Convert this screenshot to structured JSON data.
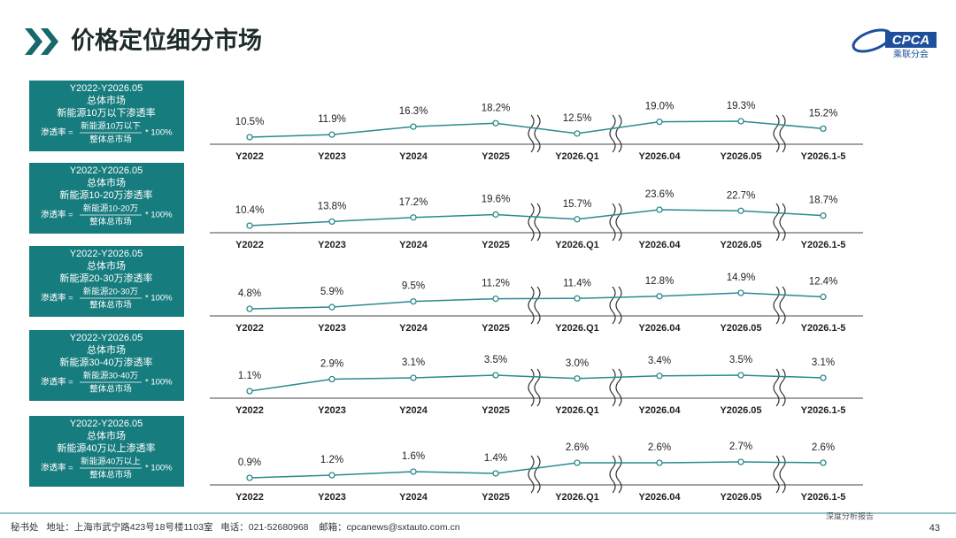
{
  "header": {
    "title": "价格定位细分市场",
    "logo": "CPCA",
    "logo_sub": "乘联分会"
  },
  "footer": {
    "contact": "秘书处   地址：上海市武宁路423号18号楼1103室   电话：021-52680968    邮箱：cpcanews@sxtauto.com.cn",
    "report": "深度分析报告",
    "page": "43"
  },
  "chart_data": [
    {
      "type": "line",
      "period": "Y2022-Y2026.05",
      "market": "总体市场",
      "series_title": "新能源10万以下渗透率",
      "formula_left": "渗透率 =",
      "numerator": "新能源10万以下",
      "denominator": "整体总市场",
      "formula_right": "* 100%",
      "color": "#2b8a8e",
      "categories": [
        "Y2022",
        "Y2023",
        "Y2024",
        "Y2025",
        "Y2026.Q1",
        "Y2026.04",
        "Y2026.05",
        "Y2026.1-5"
      ],
      "values": [
        10.5,
        11.9,
        16.3,
        18.2,
        12.5,
        19.0,
        19.3,
        15.2
      ],
      "value_labels": [
        "10.5%",
        "11.9%",
        "16.3%",
        "18.2%",
        "12.5%",
        "19.0%",
        "19.3%",
        "15.2%"
      ]
    },
    {
      "type": "line",
      "period": "Y2022-Y2026.05",
      "market": "总体市场",
      "series_title": "新能源10-20万渗透率",
      "formula_left": "渗透率 =",
      "numerator": "新能源10-20万",
      "denominator": "整体总市场",
      "formula_right": "* 100%",
      "color": "#2b8a8e",
      "categories": [
        "Y2022",
        "Y2023",
        "Y2024",
        "Y2025",
        "Y2026.Q1",
        "Y2026.04",
        "Y2026.05",
        "Y2026.1-5"
      ],
      "values": [
        10.4,
        13.8,
        17.2,
        19.6,
        15.7,
        23.6,
        22.7,
        18.7
      ],
      "value_labels": [
        "10.4%",
        "13.8%",
        "17.2%",
        "19.6%",
        "15.7%",
        "23.6%",
        "22.7%",
        "18.7%"
      ]
    },
    {
      "type": "line",
      "period": "Y2022-Y2026.05",
      "market": "总体市场",
      "series_title": "新能源20-30万渗透率",
      "formula_left": "渗透率 =",
      "numerator": "新能源20-30万",
      "denominator": "整体总市场",
      "formula_right": "* 100%",
      "color": "#2b8a8e",
      "categories": [
        "Y2022",
        "Y2023",
        "Y2024",
        "Y2025",
        "Y2026.Q1",
        "Y2026.04",
        "Y2026.05",
        "Y2026.1-5"
      ],
      "values": [
        4.8,
        5.9,
        9.5,
        11.2,
        11.4,
        12.8,
        14.9,
        12.4
      ],
      "value_labels": [
        "4.8%",
        "5.9%",
        "9.5%",
        "11.2%",
        "11.4%",
        "12.8%",
        "14.9%",
        "12.4%"
      ]
    },
    {
      "type": "line",
      "period": "Y2022-Y2026.05",
      "market": "总体市场",
      "series_title": "新能源30-40万渗透率",
      "formula_left": "渗透率 =",
      "numerator": "新能源30-40万",
      "denominator": "整体总市场",
      "formula_right": "* 100%",
      "color": "#2b8a8e",
      "categories": [
        "Y2022",
        "Y2023",
        "Y2024",
        "Y2025",
        "Y2026.Q1",
        "Y2026.04",
        "Y2026.05",
        "Y2026.1-5"
      ],
      "values": [
        1.1,
        2.9,
        3.1,
        3.5,
        3.0,
        3.4,
        3.5,
        3.1
      ],
      "value_labels": [
        "1.1%",
        "2.9%",
        "3.1%",
        "3.5%",
        "3.0%",
        "3.4%",
        "3.5%",
        "3.1%"
      ]
    },
    {
      "type": "line",
      "period": "Y2022-Y2026.05",
      "market": "总体市场",
      "series_title": "新能源40万以上渗透率",
      "formula_left": "渗透率 =",
      "numerator": "新能源40万以上",
      "denominator": "整体总市场",
      "formula_right": "* 100%",
      "color": "#2b8a8e",
      "categories": [
        "Y2022",
        "Y2023",
        "Y2024",
        "Y2025",
        "Y2026.Q1",
        "Y2026.04",
        "Y2026.05",
        "Y2026.1-5"
      ],
      "values": [
        0.9,
        1.2,
        1.6,
        1.4,
        2.6,
        2.6,
        2.7,
        2.6
      ],
      "value_labels": [
        "0.9%",
        "1.2%",
        "1.6%",
        "1.4%",
        "2.6%",
        "2.6%",
        "2.7%",
        "2.6%"
      ]
    }
  ]
}
